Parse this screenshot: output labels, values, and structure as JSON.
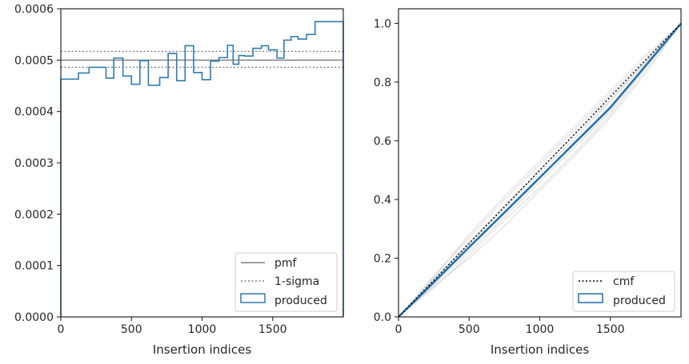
{
  "chart_data": [
    {
      "type": "line",
      "xlabel": "Insertion indices",
      "ylabel": "",
      "xlim": [
        0,
        2000
      ],
      "ylim": [
        0,
        0.0006
      ],
      "x_ticks": [
        0,
        500,
        1000,
        1500
      ],
      "x_tick_labels": [
        "0",
        "500",
        "1000",
        "1500"
      ],
      "y_ticks": [
        0,
        0.0001,
        0.0002,
        0.0003,
        0.0004,
        0.0005,
        0.0006
      ],
      "y_tick_labels": [
        "0.0000",
        "0.0001",
        "0.0002",
        "0.0003",
        "0.0004",
        "0.0005",
        "0.0006"
      ],
      "grid": false,
      "legend_position": "lower right",
      "pmf": {
        "name": "pmf",
        "value": 0.0005,
        "color": "#808080"
      },
      "sigma": {
        "name": "1-sigma",
        "upper": 0.000517,
        "lower": 0.000486,
        "color": "#808080"
      },
      "produced": {
        "name": "produced",
        "color": "#2f7bb0",
        "bin_edges": [
          0,
          125,
          200,
          320,
          375,
          440,
          500,
          560,
          620,
          700,
          760,
          820,
          880,
          940,
          1000,
          1060,
          1120,
          1180,
          1220,
          1260,
          1300,
          1360,
          1420,
          1470,
          1530,
          1580,
          1630,
          1680,
          1740,
          1800,
          1860,
          1920,
          2000
        ],
        "values": [
          0.000463,
          0.000475,
          0.000486,
          0.000465,
          0.000504,
          0.000469,
          0.000453,
          0.000499,
          0.000451,
          0.000466,
          0.000513,
          0.00046,
          0.000528,
          0.000476,
          0.000462,
          0.000498,
          0.000505,
          0.000529,
          0.000492,
          0.000509,
          0.000508,
          0.000523,
          0.000528,
          0.00052,
          0.000504,
          0.000539,
          0.000546,
          0.000541,
          0.00055,
          0.000575,
          0.000575,
          0.000575
        ]
      }
    },
    {
      "type": "line",
      "xlabel": "Insertion indices",
      "ylabel": "",
      "xlim": [
        0,
        2000
      ],
      "ylim": [
        0,
        1.05
      ],
      "x_ticks": [
        0,
        500,
        1000,
        1500
      ],
      "x_tick_labels": [
        "0",
        "500",
        "1000",
        "1500"
      ],
      "y_ticks": [
        0,
        0.2,
        0.4,
        0.6,
        0.8,
        1.0
      ],
      "y_tick_labels": [
        "0.0",
        "0.2",
        "0.4",
        "0.6",
        "0.8",
        "1.0"
      ],
      "grid": false,
      "legend_position": "lower right",
      "cmf": {
        "name": "cmf",
        "x": [
          0,
          2000
        ],
        "y": [
          0,
          1.0
        ],
        "color": "#000000"
      },
      "produced": {
        "name": "produced",
        "color": "#1f6fb0",
        "x": [
          0,
          250,
          500,
          750,
          1000,
          1250,
          1500,
          1750,
          2000
        ],
        "y": [
          0,
          0.118,
          0.238,
          0.356,
          0.475,
          0.594,
          0.713,
          0.856,
          1.0
        ]
      },
      "realizations": {
        "color": "#d0d0d0",
        "x": [
          0,
          250,
          500,
          750,
          1000,
          1250,
          1500,
          1750,
          2000
        ],
        "lines": [
          [
            0,
            0.14,
            0.27,
            0.4,
            0.52,
            0.64,
            0.76,
            0.88,
            1.0
          ],
          [
            0,
            0.1,
            0.21,
            0.33,
            0.44,
            0.56,
            0.69,
            0.84,
            1.0
          ],
          [
            0,
            0.13,
            0.25,
            0.37,
            0.5,
            0.62,
            0.74,
            0.87,
            1.0
          ],
          [
            0,
            0.11,
            0.22,
            0.34,
            0.46,
            0.58,
            0.7,
            0.85,
            1.0
          ],
          [
            0,
            0.135,
            0.28,
            0.41,
            0.53,
            0.65,
            0.77,
            0.89,
            1.0
          ],
          [
            0,
            0.105,
            0.2,
            0.31,
            0.43,
            0.55,
            0.68,
            0.83,
            1.0
          ],
          [
            0,
            0.125,
            0.255,
            0.38,
            0.49,
            0.61,
            0.735,
            0.865,
            1.0
          ],
          [
            0,
            0.115,
            0.23,
            0.35,
            0.47,
            0.6,
            0.72,
            0.86,
            1.0
          ]
        ]
      }
    }
  ]
}
